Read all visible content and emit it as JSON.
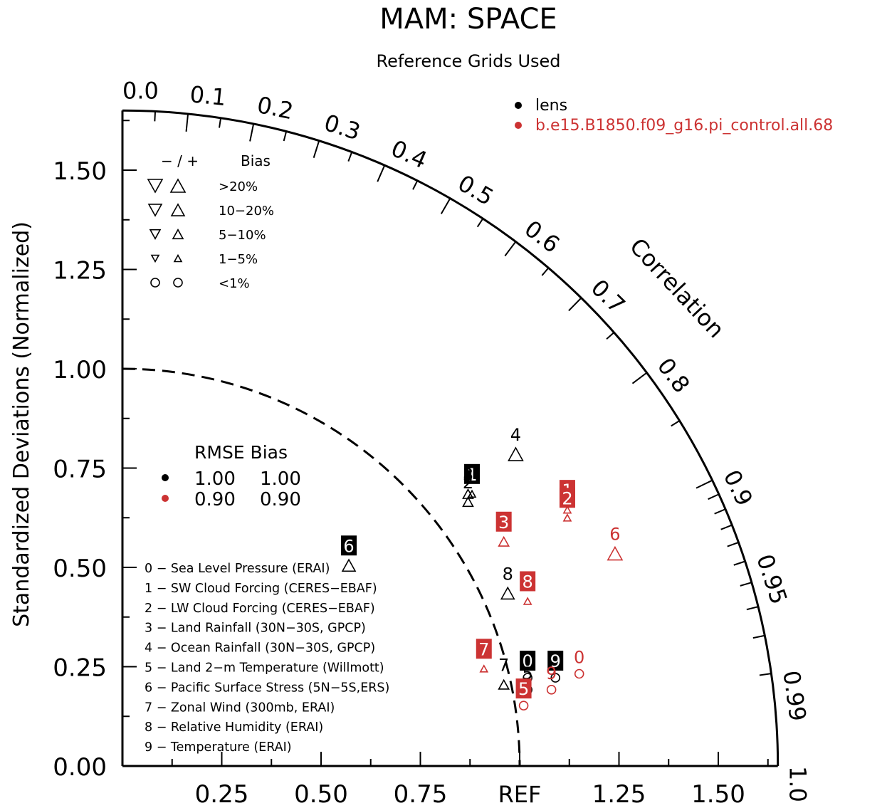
{
  "chart_data": {
    "type": "taylor-diagram",
    "title": "MAM: SPACE",
    "subtitle": "Reference Grids Used",
    "ylabel": "Standardized Deviations (Normalized)",
    "arc_label": "Correlation",
    "ref_label": "REF",
    "std_range": [
      0,
      1.65
    ],
    "y_ticks": [
      "0.00",
      "0.25",
      "0.50",
      "0.75",
      "1.00",
      "1.25",
      "1.50"
    ],
    "x_ticks": [
      "0.25",
      "0.50",
      "0.75",
      "1.25",
      "1.50"
    ],
    "corr_labels": [
      "0.0",
      "0.1",
      "0.2",
      "0.3",
      "0.4",
      "0.5",
      "0.6",
      "0.7",
      "0.8",
      "0.9",
      "0.95",
      "0.99",
      "1.0"
    ],
    "corr_label_values": [
      0.0,
      0.1,
      0.2,
      0.3,
      0.4,
      0.5,
      0.6,
      0.7,
      0.8,
      0.9,
      0.95,
      0.99,
      1.0
    ],
    "legend": [
      {
        "name": "lens",
        "color": "#000000"
      },
      {
        "name": "b.e15.B1850.f09_g16.pi_control.all.68",
        "color": "#cc3333"
      }
    ],
    "bias_key": {
      "header_sign": "− / +",
      "header_label": "Bias",
      "rows": [
        ">20%",
        "10−20%",
        "5−10%",
        "1−5%",
        "<1%"
      ]
    },
    "rmse_table": {
      "header": "RMSE Bias",
      "rows": [
        {
          "color": "#000000",
          "rmse": "1.00",
          "bias": "1.00"
        },
        {
          "color": "#cc3333",
          "rmse": "0.90",
          "bias": "0.90"
        }
      ]
    },
    "variables": [
      "0 − Sea Level Pressure (ERAI)",
      "1 − SW Cloud Forcing (CERES−EBAF)",
      "2 − LW Cloud Forcing (CERES−EBAF)",
      "3 − Land Rainfall (30N−30S, GPCP)",
      "4 − Ocean Rainfall (30N−30S, GPCP)",
      "5 − Land 2−m Temperature (Willmott)",
      "6 − Pacific Surface Stress (5N−5S,ERS)",
      "7 − Zonal Wind (300mb, ERAI)",
      "8 − Relative Humidity (ERAI)",
      "9 − Temperature (ERAI)"
    ],
    "series": [
      {
        "name": "lens",
        "color": "#000000",
        "points": [
          {
            "id": "0",
            "x": 1.02,
            "y": 0.24,
            "sym": "circle",
            "size": 5,
            "up": true,
            "box": true
          },
          {
            "id": "1",
            "x": 0.88,
            "y": 0.71,
            "sym": "tri",
            "size": 4,
            "up": true,
            "box": true
          },
          {
            "id": "2",
            "x": 0.87,
            "y": 0.69,
            "sym": "tri",
            "size": 3,
            "up": true,
            "box": false
          },
          {
            "id": "3",
            "x": 0.87,
            "y": 0.71,
            "sym": "tri",
            "size": 3,
            "up": true,
            "box": false
          },
          {
            "id": "4",
            "x": 0.99,
            "y": 0.81,
            "sym": "tri",
            "size": 1,
            "up": true,
            "box": false
          },
          {
            "id": "5",
            "x": 1.02,
            "y": 0.21,
            "sym": "circle",
            "size": 5,
            "up": true,
            "box": false
          },
          {
            "id": "6",
            "x": 0.57,
            "y": 0.53,
            "sym": "tri",
            "size": 2,
            "up": true,
            "box": true
          },
          {
            "id": "7",
            "x": 0.96,
            "y": 0.23,
            "sym": "tri",
            "size": 3,
            "up": true,
            "box": false
          },
          {
            "id": "8",
            "x": 0.97,
            "y": 0.46,
            "sym": "tri",
            "size": 2,
            "up": true,
            "box": false
          },
          {
            "id": "9",
            "x": 1.09,
            "y": 0.24,
            "sym": "circle",
            "size": 5,
            "up": true,
            "box": true
          }
        ]
      },
      {
        "name": "b.e15.B1850.f09_g16.pi_control.all.68",
        "color": "#cc3333",
        "points": [
          {
            "id": "0",
            "x": 1.15,
            "y": 0.25,
            "sym": "circle",
            "size": 5,
            "up": true,
            "box": false
          },
          {
            "id": "1",
            "x": 1.12,
            "y": 0.67,
            "sym": "tri",
            "size": 4,
            "up": true,
            "box": true
          },
          {
            "id": "2",
            "x": 1.12,
            "y": 0.65,
            "sym": "tri",
            "size": 4,
            "up": true,
            "box": true
          },
          {
            "id": "3",
            "x": 0.96,
            "y": 0.59,
            "sym": "tri",
            "size": 3,
            "up": true,
            "box": true
          },
          {
            "id": "5",
            "x": 1.01,
            "y": 0.17,
            "sym": "circle",
            "size": 5,
            "up": true,
            "box": true
          },
          {
            "id": "6",
            "x": 1.24,
            "y": 0.56,
            "sym": "tri",
            "size": 1,
            "up": true,
            "box": false
          },
          {
            "id": "7",
            "x": 0.91,
            "y": 0.27,
            "sym": "tri",
            "size": 4,
            "up": true,
            "box": true
          },
          {
            "id": "8",
            "x": 1.02,
            "y": 0.44,
            "sym": "tri",
            "size": 4,
            "up": true,
            "box": true
          },
          {
            "id": "9",
            "x": 1.08,
            "y": 0.21,
            "sym": "circle",
            "size": 5,
            "up": true,
            "box": false
          }
        ]
      }
    ]
  }
}
